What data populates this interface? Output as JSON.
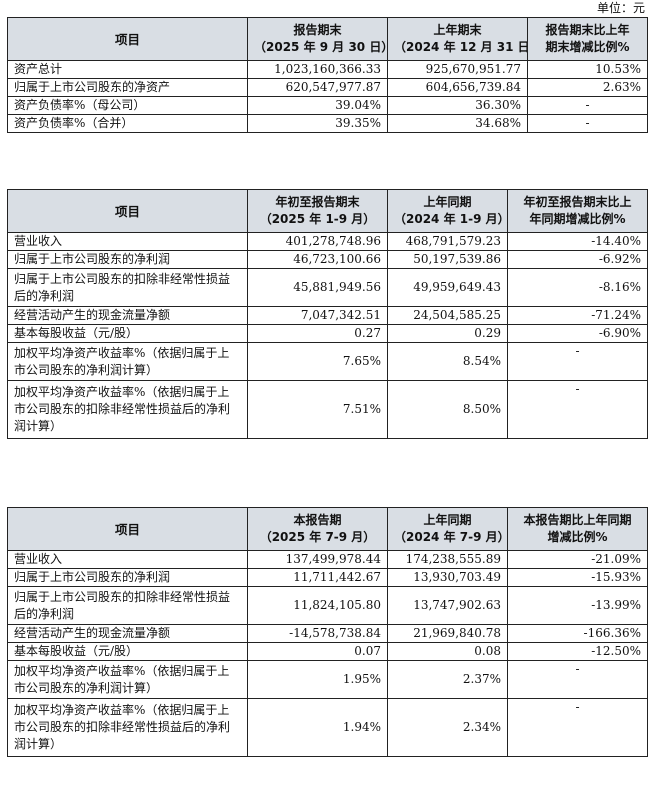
{
  "unit_label": "单位：元",
  "dash": "-",
  "table1": {
    "headers": [
      {
        "l1": "项目",
        "l2": ""
      },
      {
        "l1": "报告期末",
        "l2": "（2025 年 9 月 30 日）"
      },
      {
        "l1": "上年期末",
        "l2": "（2024 年 12 月 31 日）"
      },
      {
        "l1": "报告期末比上年",
        "l2": "期末增减比例%"
      }
    ],
    "rows": [
      {
        "label": "资产总计",
        "v1": "1,023,160,366.33",
        "v2": "925,670,951.77",
        "v3": "10.53%"
      },
      {
        "label": "归属于上市公司股东的净资产",
        "v1": "620,547,977.87",
        "v2": "604,656,739.84",
        "v3": "2.63%"
      },
      {
        "label": "资产负债率%（母公司）",
        "v1": "39.04%",
        "v2": "36.30%",
        "v3": "-"
      },
      {
        "label": "资产负债率%（合并）",
        "v1": "39.35%",
        "v2": "34.68%",
        "v3": "-"
      }
    ]
  },
  "table2": {
    "headers": [
      {
        "l1": "项目",
        "l2": ""
      },
      {
        "l1": "年初至报告期末",
        "l2": "（2025 年 1-9 月）"
      },
      {
        "l1": "上年同期",
        "l2": "（2024 年 1-9 月）"
      },
      {
        "l1": "年初至报告期末比上",
        "l2": "年同期增减比例%"
      }
    ],
    "rows": [
      {
        "label": "营业收入",
        "v1": "401,278,748.96",
        "v2": "468,791,579.23",
        "v3": "-14.40%"
      },
      {
        "label": "归属于上市公司股东的净利润",
        "v1": "46,723,100.66",
        "v2": "50,197,539.86",
        "v3": "-6.92%"
      },
      {
        "label": "归属于上市公司股东的扣除非经常性损益后的净利润",
        "v1": "45,881,949.56",
        "v2": "49,959,649.43",
        "v3": "-8.16%"
      },
      {
        "label": "经营活动产生的现金流量净额",
        "v1": "7,047,342.51",
        "v2": "24,504,585.25",
        "v3": "-71.24%"
      },
      {
        "label": "基本每股收益（元/股）",
        "v1": "0.27",
        "v2": "0.29",
        "v3": "-6.90%"
      },
      {
        "label": "加权平均净资产收益率%（依据归属于上市公司股东的净利润计算）",
        "v1": "7.65%",
        "v2": "8.54%",
        "v3": "-"
      },
      {
        "label": "加权平均净资产收益率%（依据归属于上市公司股东的扣除非经常性损益后的净利润计算）",
        "v1": "7.51%",
        "v2": "8.50%",
        "v3": "-"
      }
    ]
  },
  "table3": {
    "headers": [
      {
        "l1": "项目",
        "l2": ""
      },
      {
        "l1": "本报告期",
        "l2": "（2025 年 7-9 月）"
      },
      {
        "l1": "上年同期",
        "l2": "（2024 年 7-9 月）"
      },
      {
        "l1": "本报告期比上年同期",
        "l2": "增减比例%"
      }
    ],
    "rows": [
      {
        "label": "营业收入",
        "v1": "137,499,978.44",
        "v2": "174,238,555.89",
        "v3": "-21.09%"
      },
      {
        "label": "归属于上市公司股东的净利润",
        "v1": "11,711,442.67",
        "v2": "13,930,703.49",
        "v3": "-15.93%"
      },
      {
        "label": "归属于上市公司股东的扣除非经常性损益后的净利润",
        "v1": "11,824,105.80",
        "v2": "13,747,902.63",
        "v3": "-13.99%"
      },
      {
        "label": "经营活动产生的现金流量净额",
        "v1": "-14,578,738.84",
        "v2": "21,969,840.78",
        "v3": "-166.36%"
      },
      {
        "label": "基本每股收益（元/股）",
        "v1": "0.07",
        "v2": "0.08",
        "v3": "-12.50%"
      },
      {
        "label": "加权平均净资产收益率%（依据归属于上市公司股东的净利润计算）",
        "v1": "1.95%",
        "v2": "2.37%",
        "v3": "-"
      },
      {
        "label": "加权平均净资产收益率%（依据归属于上市公司股东的扣除非经常性损益后的净利润计算）",
        "v1": "1.94%",
        "v2": "2.34%",
        "v3": "-"
      }
    ]
  }
}
